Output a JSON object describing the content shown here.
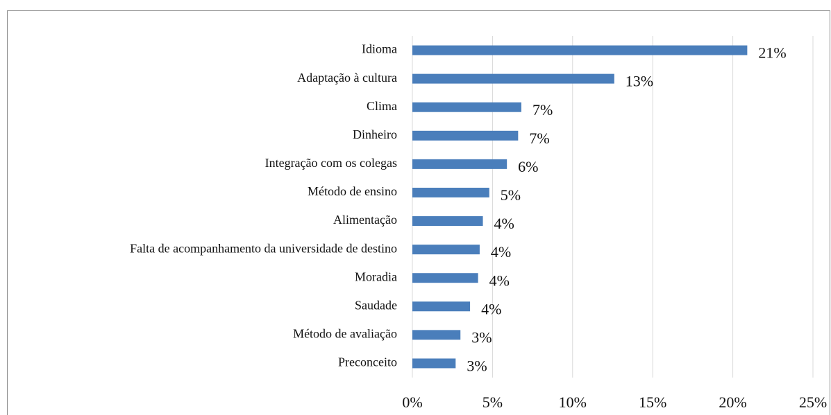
{
  "chart_data": {
    "type": "hbar",
    "categories": [
      "Idioma",
      "Adaptação à cultura",
      "Clima",
      "Dinheiro",
      "Integração com os colegas",
      "Método de ensino",
      "Alimentação",
      "Falta de acompanhamento da universidade de destino",
      "Moradia",
      "Saudade",
      "Método de avaliação",
      "Preconceito"
    ],
    "values": [
      20.9,
      12.6,
      6.8,
      6.6,
      5.9,
      4.8,
      4.4,
      4.2,
      4.1,
      3.6,
      3.0,
      2.7
    ],
    "value_labels": [
      "21%",
      "13%",
      "7%",
      "7%",
      "6%",
      "5%",
      "4%",
      "4%",
      "4%",
      "4%",
      "3%",
      "3%"
    ],
    "color": "#4a7ebb",
    "xlim": [
      0,
      25
    ],
    "xticks": [
      {
        "value": 0,
        "label": "0%"
      },
      {
        "value": 5,
        "label": "5%"
      },
      {
        "value": 10,
        "label": "10%"
      },
      {
        "value": 15,
        "label": "15%"
      },
      {
        "value": 20,
        "label": "20%"
      },
      {
        "value": 25,
        "label": "25%"
      }
    ],
    "grid": true
  }
}
